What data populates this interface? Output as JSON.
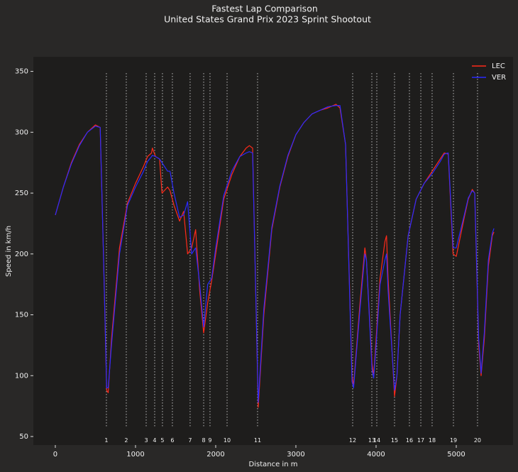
{
  "chart_data": {
    "type": "line",
    "title": "Fastest Lap Comparison",
    "subtitle": "United States Grand Prix 2023 Sprint Shootout",
    "x_label": "Distance in m",
    "y_label": "Speed in km/h",
    "x": [
      0,
      100,
      200,
      300,
      400,
      500,
      560,
      600,
      640,
      660,
      700,
      800,
      900,
      1000,
      1100,
      1150,
      1200,
      1210,
      1250,
      1300,
      1330,
      1400,
      1430,
      1480,
      1550,
      1600,
      1650,
      1700,
      1750,
      1800,
      1850,
      1900,
      1950,
      2000,
      2100,
      2200,
      2300,
      2380,
      2420,
      2460,
      2530,
      2600,
      2700,
      2800,
      2900,
      3000,
      3100,
      3200,
      3300,
      3400,
      3500,
      3550,
      3620,
      3700,
      3720,
      3800,
      3860,
      3880,
      3950,
      3970,
      4000,
      4050,
      4110,
      4130,
      4150,
      4230,
      4260,
      4300,
      4400,
      4500,
      4600,
      4700,
      4800,
      4850,
      4900,
      4960,
      5000,
      5100,
      5150,
      5200,
      5230,
      5280,
      5310,
      5350,
      5400,
      5450,
      5470
    ],
    "series": [
      {
        "name": "LEC",
        "color": "#ff2a1a",
        "values": [
          232,
          255,
          275,
          290,
          300,
          306,
          304,
          200,
          88,
          86,
          130,
          205,
          242,
          258,
          272,
          280,
          283,
          287,
          280,
          278,
          250,
          255,
          252,
          240,
          227,
          235,
          200,
          205,
          220,
          170,
          135,
          160,
          178,
          200,
          245,
          265,
          280,
          287,
          289,
          287,
          74,
          150,
          220,
          255,
          280,
          298,
          308,
          315,
          318,
          320,
          323,
          320,
          290,
          100,
          92,
          160,
          205,
          195,
          110,
          100,
          130,
          180,
          210,
          215,
          180,
          83,
          100,
          150,
          215,
          245,
          258,
          268,
          278,
          283,
          282,
          200,
          198,
          230,
          245,
          253,
          250,
          125,
          100,
          130,
          190,
          215,
          218
        ]
      },
      {
        "name": "VER",
        "color": "#2a2aff",
        "values": [
          232,
          255,
          274,
          289,
          300,
          305,
          304,
          200,
          90,
          90,
          125,
          200,
          240,
          255,
          268,
          276,
          280,
          281,
          280,
          278,
          275,
          268,
          268,
          250,
          230,
          232,
          243,
          200,
          205,
          175,
          140,
          175,
          180,
          205,
          248,
          268,
          280,
          283,
          284,
          283,
          78,
          155,
          222,
          256,
          281,
          298,
          308,
          315,
          318,
          321,
          322,
          322,
          290,
          95,
          90,
          155,
          200,
          195,
          105,
          98,
          125,
          175,
          195,
          200,
          170,
          88,
          100,
          150,
          215,
          245,
          258,
          266,
          276,
          282,
          283,
          205,
          205,
          232,
          246,
          252,
          250,
          130,
          102,
          135,
          195,
          217,
          221
        ]
      }
    ],
    "corners": [
      {
        "number": 1,
        "distance": 637
      },
      {
        "number": 2,
        "distance": 885
      },
      {
        "number": 3,
        "distance": 1133
      },
      {
        "number": 4,
        "distance": 1239
      },
      {
        "number": 5,
        "distance": 1336
      },
      {
        "number": 6,
        "distance": 1460
      },
      {
        "number": 7,
        "distance": 1681
      },
      {
        "number": 8,
        "distance": 1850
      },
      {
        "number": 9,
        "distance": 1929
      },
      {
        "number": 10,
        "distance": 2142
      },
      {
        "number": 11,
        "distance": 2522
      },
      {
        "number": 12,
        "distance": 3708
      },
      {
        "number": 13,
        "distance": 3947
      },
      {
        "number": 14,
        "distance": 4009
      },
      {
        "number": 15,
        "distance": 4230
      },
      {
        "number": 16,
        "distance": 4416
      },
      {
        "number": 17,
        "distance": 4558
      },
      {
        "number": 18,
        "distance": 4699
      },
      {
        "number": 19,
        "distance": 4965
      },
      {
        "number": 20,
        "distance": 5265
      }
    ],
    "xlim": [
      -274,
      5708
    ],
    "ylim": [
      43,
      362
    ],
    "xticks": [
      0,
      1000,
      2000,
      3000,
      4000,
      5000
    ],
    "yticks": [
      50,
      100,
      150,
      200,
      250,
      300,
      350
    ],
    "legend": "upper right"
  }
}
